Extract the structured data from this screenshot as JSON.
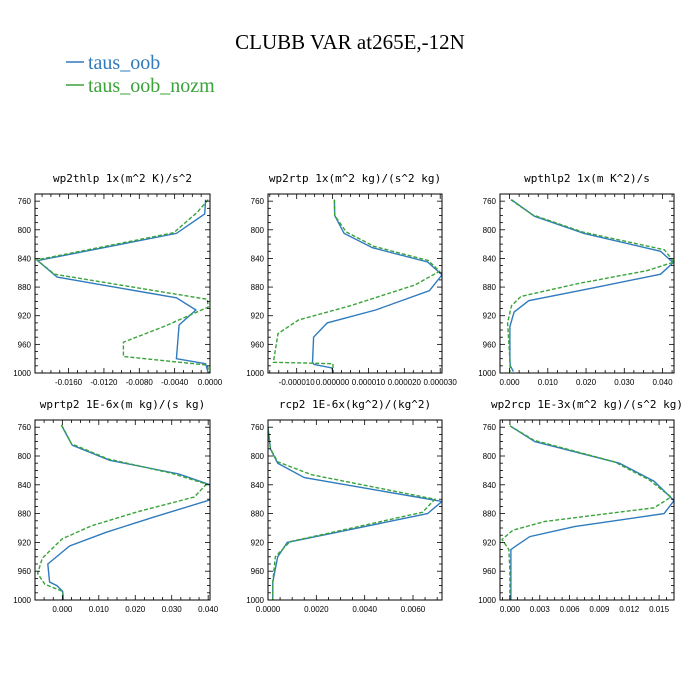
{
  "title": "CLUBB VAR at265E,-12N",
  "colors": {
    "series1": "#2f7bbd",
    "series2": "#3aa33a"
  },
  "legend": [
    {
      "label": "taus_oob",
      "color": "#2f7bbd",
      "dashed": false
    },
    {
      "label": "taus_oob_nozm",
      "color": "#3aa33a",
      "dashed": true
    }
  ],
  "chart_data": [
    {
      "type": "line",
      "title": "wp2thlp  1x(m^2 K)/s^2",
      "xlim": [
        -0.0198,
        0.0
      ],
      "ylim": [
        1000,
        750
      ],
      "xticks": [
        -0.016,
        -0.012,
        -0.008,
        -0.004,
        0.0
      ],
      "xtick_labels": [
        "-0.0160",
        "-0.0120",
        "-0.0080",
        "-0.0040",
        "0.0000"
      ],
      "yticks": [
        760,
        800,
        840,
        880,
        920,
        960,
        1000
      ],
      "series": [
        {
          "name": "taus_oob",
          "x": [
            -0.0005,
            -0.0006,
            -0.0038,
            -0.0195,
            -0.0173,
            -0.0038,
            -0.0016,
            -0.0035,
            -0.0038,
            -0.0005,
            -0.0002
          ],
          "y": [
            758,
            778,
            805,
            843,
            866,
            895,
            912,
            933,
            980,
            987,
            1000
          ]
        },
        {
          "name": "taus_oob_nozm",
          "x": [
            -0.0002,
            -0.0014,
            -0.0041,
            -0.0196,
            -0.0176,
            -0.0003,
            -0.0002,
            -0.0052,
            -0.0098,
            -0.0098,
            -0.0003,
            -0.0001
          ],
          "y": [
            758,
            775,
            804,
            842,
            862,
            897,
            908,
            935,
            957,
            977,
            989,
            1000
          ]
        }
      ]
    },
    {
      "type": "line",
      "title": "wp2rtp  1x(m^2 kg)/(s^2 kg)",
      "xlim": [
        -1.8e-05,
        3.05e-05
      ],
      "ylim": [
        1000,
        750
      ],
      "xticks": [
        -1e-05,
        0.0,
        1e-05,
        2e-05,
        3e-05
      ],
      "xtick_labels": [
        "-0.000010",
        "0.000000",
        "0.000010",
        "0.000020",
        "0.000030"
      ],
      "yticks": [
        760,
        800,
        840,
        880,
        920,
        960,
        1000
      ],
      "series": [
        {
          "name": "taus_oob",
          "x": [
            5e-07,
            6e-07,
            3.2e-06,
            1.11e-05,
            2.65e-05,
            3.05e-05,
            2.7e-05,
            1.2e-05,
            -1.5e-06,
            -5.3e-06,
            -5.6e-06,
            -5.2e-06,
            -2e-07,
            1e-07
          ],
          "y": [
            758,
            780,
            805,
            825,
            845,
            863,
            885,
            912,
            930,
            950,
            985,
            988,
            993,
            1000
          ]
        },
        {
          "name": "taus_oob_nozm",
          "x": [
            5e-07,
            6e-07,
            3.8e-06,
            1.15e-05,
            2.67e-05,
            2.98e-05,
            2.3e-05,
            5e-06,
            -9.5e-06,
            -1.52e-05,
            -1.65e-05,
            1e-07,
            2e-07
          ],
          "y": [
            758,
            780,
            803,
            823,
            843,
            858,
            877,
            906,
            926,
            945,
            985,
            987,
            1000
          ]
        }
      ]
    },
    {
      "type": "line",
      "title": "wpthlp2  1x(m K^2)/s",
      "xlim": [
        -0.0025,
        0.043
      ],
      "ylim": [
        1000,
        750
      ],
      "xticks": [
        0.0,
        0.01,
        0.02,
        0.03,
        0.04
      ],
      "xtick_labels": [
        "0.000",
        "0.010",
        "0.020",
        "0.030",
        "0.040"
      ],
      "yticks": [
        760,
        800,
        840,
        880,
        920,
        960,
        1000
      ],
      "series": [
        {
          "name": "taus_oob",
          "x": [
            0.0005,
            0.0065,
            0.0195,
            0.0395,
            0.0428,
            0.0395,
            0.022,
            0.005,
            0.0012,
            0.0001,
            0.0001,
            0.0002,
            0.001
          ],
          "y": [
            758,
            781,
            805,
            830,
            846,
            862,
            881,
            899,
            915,
            935,
            980,
            990,
            998
          ]
        },
        {
          "name": "taus_oob_nozm",
          "x": [
            0.0003,
            0.006,
            0.019,
            0.0405,
            0.043,
            0.036,
            0.018,
            0.003,
            0.0005,
            -0.0005,
            0.0,
            0.0002
          ],
          "y": [
            758,
            779,
            803,
            828,
            845,
            857,
            875,
            893,
            906,
            930,
            975,
            998
          ]
        }
      ]
    },
    {
      "type": "line",
      "title": "wprtp2  1E-6x(m kg)/(s kg)",
      "xlim": [
        -0.0075,
        0.0405
      ],
      "ylim": [
        1000,
        750
      ],
      "xticks": [
        0.0,
        0.01,
        0.02,
        0.03,
        0.04
      ],
      "xtick_labels": [
        "0.000",
        "0.010",
        "0.020",
        "0.030",
        "0.040"
      ],
      "yticks": [
        760,
        800,
        840,
        880,
        920,
        960,
        1000
      ],
      "series": [
        {
          "name": "taus_oob",
          "x": [
            -0.0003,
            0.0027,
            0.013,
            0.032,
            0.0405,
            0.0405,
            0.025,
            0.012,
            0.002,
            -0.004,
            -0.0035,
            -0.0015,
            0.0001,
            0.0003
          ],
          "y": [
            757,
            785,
            806,
            825,
            840,
            861,
            885,
            906,
            925,
            950,
            975,
            980,
            988,
            1000
          ]
        },
        {
          "name": "taus_oob_nozm",
          "x": [
            -0.0002,
            0.0025,
            0.0125,
            0.03,
            0.0395,
            0.0362,
            0.021,
            0.008,
            0.0,
            -0.0055,
            -0.0068,
            -0.0048,
            0.0001,
            0.0003
          ],
          "y": [
            757,
            783,
            804,
            824,
            839,
            857,
            877,
            897,
            915,
            942,
            963,
            978,
            988,
            1000
          ]
        }
      ]
    },
    {
      "type": "line",
      "title": "rcp2  1E-6x(kg^2)/(kg^2)",
      "xlim": [
        0.0,
        0.0072
      ],
      "ylim": [
        1000,
        750
      ],
      "xticks": [
        0.0,
        0.002,
        0.004,
        0.006
      ],
      "xtick_labels": [
        "0.0000",
        "0.0020",
        "0.0040",
        "0.0060"
      ],
      "yticks": [
        760,
        800,
        840,
        880,
        920,
        960,
        1000
      ],
      "series": [
        {
          "name": "taus_oob",
          "x": [
            0.0,
            0.0001,
            0.0004,
            0.0015,
            0.0072,
            0.0066,
            0.003,
            0.0008,
            0.0004,
            0.0002,
            0.0002
          ],
          "y": [
            760,
            790,
            810,
            830,
            863,
            880,
            905,
            920,
            940,
            975,
            1000
          ]
        },
        {
          "name": "taus_oob_nozm",
          "x": [
            0.0,
            0.0001,
            0.0004,
            0.0018,
            0.0069,
            0.0064,
            0.0028,
            0.0009,
            0.0003,
            0.0002,
            0.0002
          ],
          "y": [
            760,
            790,
            808,
            826,
            860,
            878,
            905,
            919,
            940,
            975,
            1000
          ]
        }
      ]
    },
    {
      "type": "line",
      "title": "wp2rcp  1E-3x(m^2 kg)/(s^2 kg)",
      "xlim": [
        -0.001,
        0.0165
      ],
      "ylim": [
        1000,
        750
      ],
      "xticks": [
        0.0,
        0.003,
        0.006,
        0.009,
        0.012,
        0.015
      ],
      "xtick_labels": [
        "0.000",
        "0.003",
        "0.006",
        "0.009",
        "0.012",
        "0.015"
      ],
      "yticks": [
        760,
        800,
        840,
        880,
        920,
        960,
        1000
      ],
      "series": [
        {
          "name": "taus_oob",
          "x": [
            0.0,
            0.0025,
            0.011,
            0.0145,
            0.0165,
            0.0155,
            0.0065,
            0.002,
            0.0005,
            0.0001,
            0.0001,
            0.0001
          ],
          "y": [
            758,
            780,
            810,
            835,
            862,
            880,
            898,
            912,
            926,
            930,
            960,
            1000
          ]
        },
        {
          "name": "taus_oob_nozm",
          "x": [
            0.0,
            0.0024,
            0.0105,
            0.014,
            0.0162,
            0.0145,
            0.0035,
            0.0003,
            -0.0008,
            -0.0001,
            0.0,
            0.0
          ],
          "y": [
            758,
            778,
            808,
            833,
            857,
            872,
            891,
            903,
            916,
            930,
            960,
            1000
          ]
        }
      ]
    }
  ]
}
